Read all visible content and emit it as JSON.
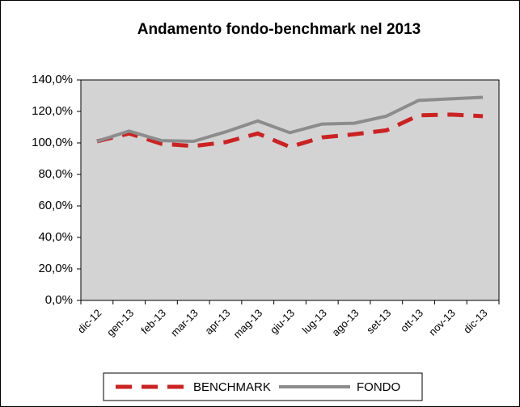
{
  "chart_data": {
    "type": "line",
    "title": "Andamento fondo-benchmark nel 2013",
    "categories": [
      "dic-12",
      "gen-13",
      "feb-13",
      "mar-13",
      "apr-13",
      "mag-13",
      "giu-13",
      "lug-13",
      "ago-13",
      "set-13",
      "ott-13",
      "nov-13",
      "dic-13"
    ],
    "series": [
      {
        "name": "BENCHMARK",
        "color": "#cc2222",
        "dashed": true,
        "values": [
          101,
          106,
          99.5,
          98,
          100.5,
          106,
          97.5,
          103.5,
          105.5,
          108,
          117.5,
          118,
          117
        ]
      },
      {
        "name": "FONDO",
        "color": "#8c8c8c",
        "dashed": false,
        "values": [
          101,
          107.5,
          101.5,
          101,
          107,
          114,
          106.5,
          112,
          112.5,
          117,
          127,
          128,
          129
        ]
      }
    ],
    "ylim": [
      0,
      140
    ],
    "yticks": [
      {
        "value": 0,
        "label": "0,0%"
      },
      {
        "value": 20,
        "label": "20,0%"
      },
      {
        "value": 40,
        "label": "40,0%"
      },
      {
        "value": 60,
        "label": "60,0%"
      },
      {
        "value": 80,
        "label": "80,0%"
      },
      {
        "value": 100,
        "label": "100,0%"
      },
      {
        "value": 120,
        "label": "120,0%"
      },
      {
        "value": 140,
        "label": "140,0%"
      }
    ],
    "grid": false
  }
}
